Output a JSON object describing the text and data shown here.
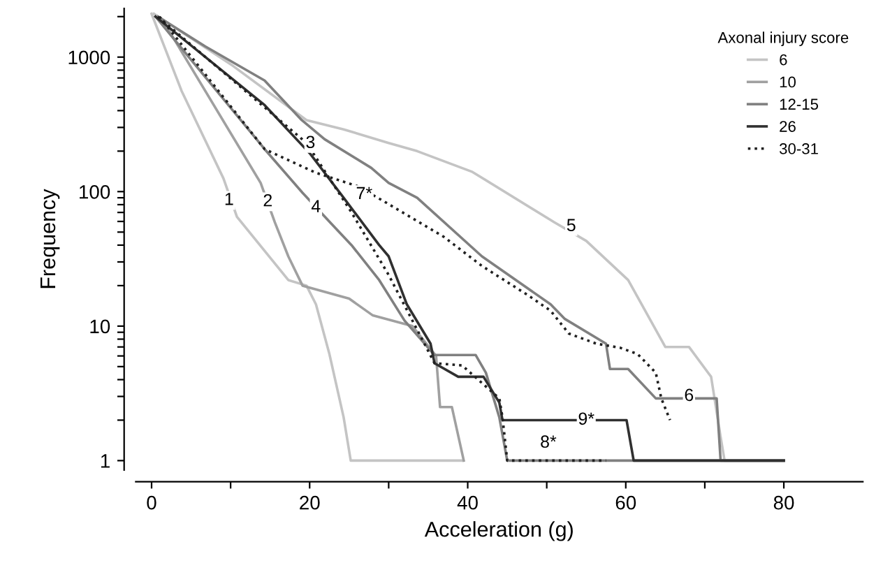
{
  "chart_data": {
    "type": "line",
    "xlabel": "Acceleration (g)",
    "ylabel": "Frequency",
    "legend_title": "Axonal injury score",
    "legend": "top right",
    "log": "y",
    "grid": false,
    "xlim": [
      -2,
      90
    ],
    "xticks": [
      0,
      {
        "value": 10,
        "label": null
      },
      20,
      {
        "value": 30,
        "label": null
      },
      40,
      {
        "value": 50,
        "label": null
      },
      60,
      {
        "value": 70,
        "label": null
      },
      80
    ],
    "ylim": [
      0.85,
      2300
    ],
    "yticks": [
      1,
      {
        "value": 2,
        "label": null
      },
      {
        "value": 3,
        "label": null
      },
      {
        "value": 4,
        "label": null
      },
      {
        "value": 5,
        "label": null
      },
      {
        "value": 6,
        "label": null
      },
      {
        "value": 7,
        "label": null
      },
      {
        "value": 8,
        "label": null
      },
      {
        "value": 9,
        "label": null
      },
      10,
      {
        "value": 20,
        "label": null
      },
      {
        "value": 30,
        "label": null
      },
      {
        "value": 40,
        "label": null
      },
      {
        "value": 50,
        "label": null
      },
      {
        "value": 60,
        "label": null
      },
      {
        "value": 70,
        "label": null
      },
      {
        "value": 80,
        "label": null
      },
      {
        "value": 90,
        "label": null
      },
      100,
      {
        "value": 200,
        "label": null
      },
      {
        "value": 300,
        "label": null
      },
      {
        "value": 400,
        "label": null
      },
      {
        "value": 500,
        "label": null
      },
      {
        "value": 600,
        "label": null
      },
      {
        "value": 700,
        "label": null
      },
      {
        "value": 800,
        "label": null
      },
      {
        "value": 900,
        "label": null
      },
      1000,
      {
        "value": 2000,
        "label": null
      }
    ],
    "series": [
      {
        "name": "6",
        "color": "#c4c4c4",
        "x": [
          0,
          3.8,
          9.1,
          10.8,
          17.3,
          19.6,
          20.8,
          22.5,
          24.3,
          25.2,
          39.3
        ],
        "values": [
          2100,
          560,
          125,
          65,
          22,
          20,
          14.5,
          6.2,
          2.1,
          1,
          1
        ]
      },
      {
        "color": "#c4c4c4",
        "x": [
          0.3,
          10.3,
          19.6,
          24.3,
          30,
          33.6,
          40.6,
          51,
          55,
          60.3,
          65,
          68,
          70.8,
          72,
          72.5,
          80
        ],
        "values": [
          2100,
          860,
          340,
          290,
          230,
          200,
          140,
          59,
          43,
          22,
          7,
          7,
          4.2,
          1.5,
          1,
          1
        ]
      },
      {
        "name": "10",
        "color": "#a0a0a0",
        "x": [
          1.6,
          13.8,
          15.6,
          17.3,
          19.1,
          25,
          28,
          33,
          36,
          36.5,
          38,
          39.5
        ],
        "values": [
          1800,
          116,
          59,
          33,
          20,
          16,
          12,
          10,
          6,
          2.5,
          2.5,
          1
        ]
      },
      {
        "name": "12-15",
        "color": "#808080",
        "x": [
          0.8,
          6.8,
          14.3,
          19,
          21.9,
          27.8,
          30,
          33.6,
          41.8,
          50.5,
          52.3,
          57.5,
          58,
          60.3,
          63.8,
          71.5,
          72,
          80
        ],
        "values": [
          2000,
          1200,
          670,
          340,
          245,
          150,
          116,
          90,
          33,
          14.5,
          11.3,
          7.4,
          4.8,
          4.8,
          2.9,
          2.9,
          1,
          1
        ]
      },
      {
        "color": "#808080",
        "x": [
          0.5,
          14.3,
          19.1,
          22.6,
          25.3,
          28.8,
          32,
          35.8,
          41,
          42.3,
          44,
          45,
          80
        ],
        "values": [
          2000,
          207,
          98,
          59,
          40,
          22,
          11,
          6.1,
          6.1,
          4.5,
          2.1,
          1,
          1
        ]
      },
      {
        "name": "26",
        "color": "#303030",
        "x": [
          0.5,
          14.3,
          20.1,
          24.3,
          28.8,
          30,
          32.3,
          35.3,
          35.8,
          38.8,
          42,
          44,
          44.4,
          60.1,
          61,
          80
        ],
        "values": [
          2000,
          440,
          190,
          90,
          40,
          33,
          14.5,
          7.4,
          5.3,
          4.2,
          4.2,
          2.7,
          2.0,
          2.0,
          1,
          1
        ]
      },
      {
        "name": "30-31",
        "color": "#202020",
        "line_style": "dotted",
        "x": [
          0.8,
          19.6,
          25.3,
          30,
          33,
          35.8,
          39.3,
          44,
          44.4,
          45,
          51,
          57.5
        ],
        "values": [
          2000,
          230,
          70,
          24,
          11,
          5.3,
          5.1,
          2.9,
          2.1,
          1,
          1,
          1
        ]
      },
      {
        "color": "#202020",
        "line_style": "dotted",
        "x": [
          1,
          14.3,
          20.8,
          26,
          29.5,
          37,
          41.8,
          47.6,
          50.5,
          52.8,
          56.3,
          59.3,
          61.5,
          63.8,
          64.5,
          65.6
        ],
        "values": [
          2000,
          207,
          138,
          110,
          84,
          46,
          28,
          17,
          13,
          8.8,
          7.4,
          6.9,
          6.2,
          4.5,
          2.9,
          2.0
        ]
      }
    ],
    "annotations": [
      {
        "text": "1",
        "x": 9.8,
        "y": 86
      },
      {
        "text": "2",
        "x": 14.7,
        "y": 84
      },
      {
        "text": "3",
        "x": 20.1,
        "y": 228
      },
      {
        "text": "4",
        "x": 20.8,
        "y": 76
      },
      {
        "text": "5",
        "x": 53.1,
        "y": 55
      },
      {
        "text": "6",
        "x": 68,
        "y": 3.0
      },
      {
        "text": "7*",
        "x": 26.9,
        "y": 95
      },
      {
        "text": "8*",
        "x": 50.2,
        "y": 1.35
      },
      {
        "text": "9*",
        "x": 55,
        "y": 2.0
      }
    ]
  }
}
